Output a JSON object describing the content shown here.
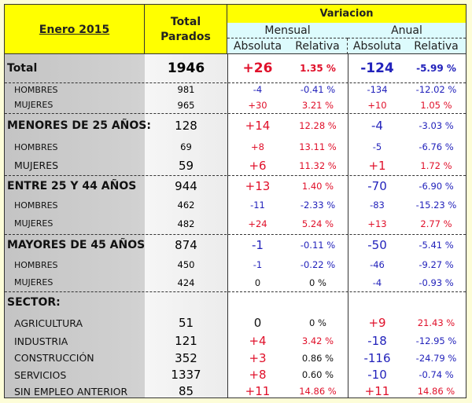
{
  "header": {
    "period": "Enero 2015",
    "total_label_1": "Total",
    "total_label_2": "Parados",
    "variacion": "Variacion",
    "mensual": "Mensual",
    "anual": "Anual",
    "absoluta_m": "Absoluta",
    "relativa_m": "Relativa",
    "absoluta_a": "Absoluta",
    "relativa_a": "Relativa"
  },
  "colors": {
    "positive": "#e0102a",
    "negative": "#2222bb",
    "header_yellow": "#ffff00",
    "header_cyan": "#ddfbfd"
  },
  "rows": [
    {
      "label": "Total",
      "total": "1946",
      "m_abs": "+26",
      "m_rel": "1.35 %",
      "a_abs": "-124",
      "a_rel": "-5.99 %",
      "kind": "total"
    },
    {
      "label": "HOMBRES",
      "total": "981",
      "m_abs": "-4",
      "m_rel": "-0.41 %",
      "a_abs": "-134",
      "a_rel": "-12.02 %",
      "kind": "sub"
    },
    {
      "label": "MUJERES",
      "total": "965",
      "m_abs": "+30",
      "m_rel": "3.21 %",
      "a_abs": "+10",
      "a_rel": "1.05 %",
      "kind": "sub"
    },
    {
      "label": "MENORES DE 25 AÑOS:",
      "total": "128",
      "m_abs": "+14",
      "m_rel": "12.28 %",
      "a_abs": "-4",
      "a_rel": "-3.03 %",
      "kind": "main"
    },
    {
      "label": "HOMBRES",
      "total": "69",
      "m_abs": "+8",
      "m_rel": "13.11 %",
      "a_abs": "-5",
      "a_rel": "-6.76 %",
      "kind": "sub"
    },
    {
      "label": "MUJERES",
      "total": "59",
      "m_abs": "+6",
      "m_rel": "11.32 %",
      "a_abs": "+1",
      "a_rel": "1.72 %",
      "kind": "sec"
    },
    {
      "label": "ENTRE 25 Y 44 AÑOS",
      "total": "944",
      "m_abs": "+13",
      "m_rel": "1.40 %",
      "a_abs": "-70",
      "a_rel": "-6.90 %",
      "kind": "main"
    },
    {
      "label": "HOMBRES",
      "total": "462",
      "m_abs": "-11",
      "m_rel": "-2.33 %",
      "a_abs": "-83",
      "a_rel": "-15.23 %",
      "kind": "sub"
    },
    {
      "label": "MUJERES",
      "total": "482",
      "m_abs": "+24",
      "m_rel": "5.24 %",
      "a_abs": "+13",
      "a_rel": "2.77 %",
      "kind": "sub"
    },
    {
      "label": "MAYORES DE 45 AÑOS",
      "total": "874",
      "m_abs": "-1",
      "m_rel": "-0.11 %",
      "a_abs": "-50",
      "a_rel": "-5.41 %",
      "kind": "main"
    },
    {
      "label": "HOMBRES",
      "total": "450",
      "m_abs": "-1",
      "m_rel": "-0.22 %",
      "a_abs": "-46",
      "a_rel": "-9.27 %",
      "kind": "sub"
    },
    {
      "label": "MUJERES",
      "total": "424",
      "m_abs": "0",
      "m_rel": "0 %",
      "a_abs": "-4",
      "a_rel": "-0.93 %",
      "kind": "sub"
    },
    {
      "label": "SECTOR:",
      "total": "",
      "m_abs": "",
      "m_rel": "",
      "a_abs": "",
      "a_rel": "",
      "kind": "main"
    },
    {
      "label": "AGRICULTURA",
      "total": "51",
      "m_abs": "0",
      "m_rel": "0 %",
      "a_abs": "+9",
      "a_rel": "21.43 %",
      "kind": "sec"
    },
    {
      "label": "INDUSTRIA",
      "total": "121",
      "m_abs": "+4",
      "m_rel": "3.42 %",
      "a_abs": "-18",
      "a_rel": "-12.95 %",
      "kind": "sec"
    },
    {
      "label": "CONSTRUCCIÓN",
      "total": "352",
      "m_abs": "+3",
      "m_rel": "0.86 %",
      "a_abs": "-116",
      "a_rel": "-24.79 %",
      "kind": "sec"
    },
    {
      "label": "SERVICIOS",
      "total": "1337",
      "m_abs": "+8",
      "m_rel": "0.60 %",
      "a_abs": "-10",
      "a_rel": "-0.74 %",
      "kind": "sec"
    },
    {
      "label": "SIN EMPLEO ANTERIOR",
      "total": "85",
      "m_abs": "+11",
      "m_rel": "14.86 %",
      "a_abs": "+11",
      "a_rel": "14.86 %",
      "kind": "sec"
    }
  ]
}
